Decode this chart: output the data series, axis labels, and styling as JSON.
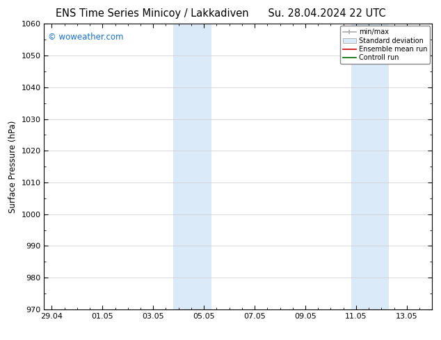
{
  "title_left": "ENS Time Series Minicoy / Lakkadiven",
  "title_right": "Su. 28.04.2024 22 UTC",
  "ylabel": "Surface Pressure (hPa)",
  "ylim": [
    970,
    1060
  ],
  "yticks": [
    970,
    980,
    990,
    1000,
    1010,
    1020,
    1030,
    1040,
    1050,
    1060
  ],
  "xtick_labels": [
    "29.04",
    "01.05",
    "03.05",
    "05.05",
    "07.05",
    "09.05",
    "11.05",
    "13.05"
  ],
  "xtick_positions": [
    0,
    2,
    4,
    6,
    8,
    10,
    12,
    14
  ],
  "xlim": [
    -0.3,
    15.0
  ],
  "watermark": "© woweather.com",
  "watermark_color": "#1a6fcc",
  "shaded_bands": [
    {
      "x_start": 4.8,
      "x_end": 6.3
    },
    {
      "x_start": 11.8,
      "x_end": 13.3
    }
  ],
  "shaded_color": "#daeaf8",
  "background_color": "#ffffff",
  "plot_bg_color": "#ffffff",
  "legend_labels": [
    "min/max",
    "Standard deviation",
    "Ensemble mean run",
    "Controll run"
  ],
  "title_fontsize": 10.5,
  "axis_fontsize": 8.5,
  "tick_fontsize": 8.0,
  "watermark_fontsize": 8.5
}
